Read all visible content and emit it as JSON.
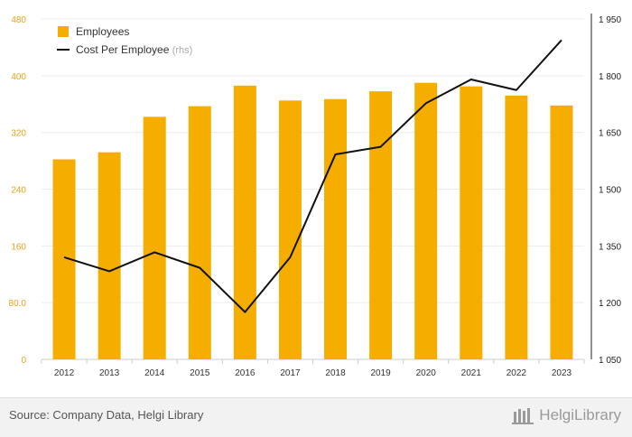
{
  "chart_data": {
    "type": "bar",
    "categories": [
      "2012",
      "2013",
      "2014",
      "2015",
      "2016",
      "2017",
      "2018",
      "2019",
      "2020",
      "2021",
      "2022",
      "2023"
    ],
    "series": [
      {
        "name": "Employees",
        "axis": "left",
        "kind": "bar",
        "color": "#f5ad00",
        "values": [
          282,
          292,
          342,
          357,
          386,
          365,
          367,
          378,
          390,
          385,
          372,
          358
        ]
      },
      {
        "name": "Cost Per Employee",
        "axis": "right",
        "kind": "line",
        "color": "#111111",
        "values": [
          1320,
          1283,
          1333,
          1292,
          1175,
          1320,
          1592,
          1612,
          1727,
          1790,
          1762,
          1894
        ]
      }
    ],
    "left_axis": {
      "ylim": [
        0,
        480
      ],
      "ticks": [
        "0",
        "80.0",
        "160",
        "240",
        "320",
        "400",
        "480"
      ],
      "color": "#e8a317"
    },
    "right_axis": {
      "ylim": [
        1050,
        1950
      ],
      "ticks": [
        "1 050",
        "1 200",
        "1 350",
        "1 500",
        "1 650",
        "1 800",
        "1 950"
      ]
    },
    "legend": {
      "position": "top-left",
      "entries": [
        "Employees",
        "Cost Per Employee"
      ],
      "line_suffix": "(rhs)"
    },
    "grid": true
  },
  "footer": {
    "source": "Source: Company Data, Helgi Library",
    "logo_text": "HelgiLibrary",
    "logo_icon": "library-icon"
  }
}
